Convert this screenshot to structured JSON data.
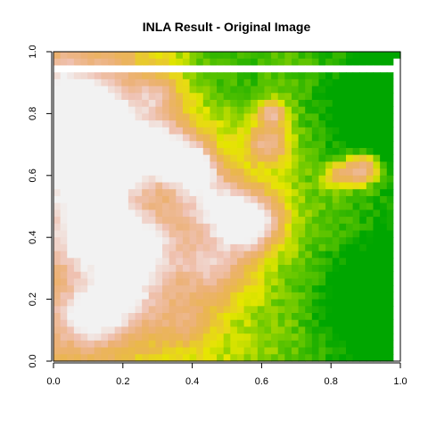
{
  "chart_data": {
    "type": "heatmap",
    "title": "INLA Result  - Original Image",
    "xlabel": "",
    "ylabel": "",
    "xlim": [
      0,
      1
    ],
    "ylim": [
      0,
      1
    ],
    "x_ticks": [
      0.0,
      0.2,
      0.4,
      0.6,
      0.8,
      1.0
    ],
    "y_ticks": [
      0.0,
      0.2,
      0.4,
      0.6,
      0.8,
      1.0
    ],
    "x_tick_labels": [
      "0.0",
      "0.2",
      "0.4",
      "0.6",
      "0.8",
      "1.0"
    ],
    "y_tick_labels": [
      "0.0",
      "0.2",
      "0.4",
      "0.6",
      "0.8",
      "1.0"
    ],
    "grid": false,
    "legend": "none",
    "colormap": "terrain",
    "colormap_stops": [
      "#00A600",
      "#63C600",
      "#E6E600",
      "#EAB64E",
      "#ECB176",
      "#EFC2B3",
      "#F2F2F2"
    ],
    "nrows": 45,
    "ncols": 51,
    "values_note": "value 0 = low (green), 1 = high (white); estimated from image",
    "rows": [
      "RRRRRRRRRRRRRRRRRRRRRRRRRRRRRRRRRRRRRRRRRRRRRRRRRR",
      "LLLLLMMMLLMLLLLLLLMMLLLLMLLLLMLLLLMLLLMLMLLLLLLLLLLL",
      "LLLLLLLLLLLLLLLLLLLLLLLLLLLLLLLLLLLLLLLLLLLLLLLLLLL"
    ],
    "field_model": [
      {
        "x": 0.07,
        "y": 0.78,
        "r": 0.16,
        "w": 1.0
      },
      {
        "x": 0.16,
        "y": 0.66,
        "r": 0.1,
        "w": 0.9
      },
      {
        "x": 0.1,
        "y": 0.58,
        "r": 0.08,
        "w": 0.8
      },
      {
        "x": 0.31,
        "y": 0.68,
        "r": 0.1,
        "w": 0.7
      },
      {
        "x": 0.4,
        "y": 0.63,
        "r": 0.06,
        "w": 0.9
      },
      {
        "x": 0.56,
        "y": 0.45,
        "r": 0.09,
        "w": 1.0
      },
      {
        "x": 0.46,
        "y": 0.3,
        "r": 0.1,
        "w": 0.5
      },
      {
        "x": 0.25,
        "y": 0.36,
        "r": 0.12,
        "w": 0.6
      },
      {
        "x": 0.12,
        "y": 0.42,
        "r": 0.12,
        "w": 0.7
      },
      {
        "x": 0.2,
        "y": 0.2,
        "r": 0.11,
        "w": 0.5
      },
      {
        "x": 0.1,
        "y": 0.14,
        "r": 0.09,
        "w": 0.55
      },
      {
        "x": 0.45,
        "y": 0.52,
        "r": 0.1,
        "w": 0.55
      },
      {
        "x": 0.62,
        "y": 0.7,
        "r": 0.06,
        "w": 0.55
      },
      {
        "x": 0.63,
        "y": 0.8,
        "r": 0.04,
        "w": 0.6
      },
      {
        "x": 0.89,
        "y": 0.62,
        "r": 0.05,
        "w": 0.75
      },
      {
        "x": 0.82,
        "y": 0.6,
        "r": 0.04,
        "w": 0.4
      },
      {
        "x": 0.38,
        "y": 0.13,
        "r": 0.08,
        "w": 0.3
      },
      {
        "x": 0.3,
        "y": 0.86,
        "r": 0.06,
        "w": 0.35
      }
    ],
    "missing_bands": {
      "top_row_y": 0.955,
      "right_col_x": 0.985
    }
  }
}
